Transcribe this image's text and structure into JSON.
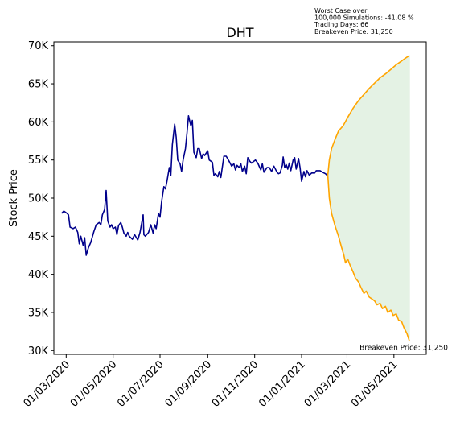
{
  "chart_data": {
    "type": "line",
    "title": "DHT",
    "ylabel": "Stock Price",
    "xlabel": "",
    "ylim": [
      29500,
      70500
    ],
    "xlim": [
      "2020-02-14",
      "2021-06-12"
    ],
    "y_ticks": [
      30000,
      35000,
      40000,
      45000,
      50000,
      55000,
      60000,
      65000,
      70000
    ],
    "y_tick_labels": [
      "30K",
      "35K",
      "40K",
      "45K",
      "50K",
      "55K",
      "60K",
      "65K",
      "70K"
    ],
    "x_ticks": [
      "2020-03-01",
      "2020-05-01",
      "2020-07-01",
      "2020-09-01",
      "2020-11-01",
      "2021-01-01",
      "2021-03-01",
      "2021-05-01"
    ],
    "x_tick_labels": [
      "01/03/2020",
      "01/05/2020",
      "01/07/2020",
      "01/09/2020",
      "01/11/2020",
      "01/01/2021",
      "01/03/2021",
      "01/05/2021"
    ],
    "annotation_lines": [
      "Worst Case over",
      "100,000 Simulations: -41.08 %",
      "Trading Days: 66",
      "Breakeven Price: 31,250"
    ],
    "breakeven": {
      "value": 31250,
      "label": "Breakeven Price: 31,250"
    },
    "colors": {
      "history": "#00008b",
      "bounds": "#ffa500",
      "fill": "#e4f2e4",
      "breakeven": "#d62728"
    },
    "series": [
      {
        "role": "history",
        "points": [
          [
            "2020-02-24",
            48000
          ],
          [
            "2020-02-27",
            48300
          ],
          [
            "2020-03-02",
            48000
          ],
          [
            "2020-03-04",
            47800
          ],
          [
            "2020-03-06",
            46200
          ],
          [
            "2020-03-10",
            46000
          ],
          [
            "2020-03-13",
            46200
          ],
          [
            "2020-03-16",
            45500
          ],
          [
            "2020-03-18",
            44000
          ],
          [
            "2020-03-20",
            45000
          ],
          [
            "2020-03-23",
            43800
          ],
          [
            "2020-03-25",
            44800
          ],
          [
            "2020-03-27",
            42500
          ],
          [
            "2020-03-30",
            43500
          ],
          [
            "2020-04-02",
            44200
          ],
          [
            "2020-04-06",
            45600
          ],
          [
            "2020-04-09",
            46500
          ],
          [
            "2020-04-13",
            46800
          ],
          [
            "2020-04-15",
            46500
          ],
          [
            "2020-04-17",
            47800
          ],
          [
            "2020-04-20",
            48500
          ],
          [
            "2020-04-22",
            51000
          ],
          [
            "2020-04-24",
            47000
          ],
          [
            "2020-04-27",
            46200
          ],
          [
            "2020-04-29",
            46500
          ],
          [
            "2020-05-01",
            46000
          ],
          [
            "2020-05-04",
            46200
          ],
          [
            "2020-05-06",
            45200
          ],
          [
            "2020-05-08",
            46400
          ],
          [
            "2020-05-11",
            46800
          ],
          [
            "2020-05-13",
            46200
          ],
          [
            "2020-05-15",
            45400
          ],
          [
            "2020-05-18",
            45000
          ],
          [
            "2020-05-20",
            45500
          ],
          [
            "2020-05-22",
            45000
          ],
          [
            "2020-05-26",
            44600
          ],
          [
            "2020-05-29",
            45200
          ],
          [
            "2020-06-02",
            44500
          ],
          [
            "2020-06-05",
            45500
          ],
          [
            "2020-06-09",
            47800
          ],
          [
            "2020-06-10",
            45200
          ],
          [
            "2020-06-12",
            45000
          ],
          [
            "2020-06-16",
            45500
          ],
          [
            "2020-06-19",
            46500
          ],
          [
            "2020-06-22",
            45400
          ],
          [
            "2020-06-24",
            46500
          ],
          [
            "2020-06-26",
            46000
          ],
          [
            "2020-06-29",
            48000
          ],
          [
            "2020-07-01",
            47500
          ],
          [
            "2020-07-03",
            49500
          ],
          [
            "2020-07-06",
            51500
          ],
          [
            "2020-07-08",
            51200
          ],
          [
            "2020-07-10",
            52200
          ],
          [
            "2020-07-13",
            54000
          ],
          [
            "2020-07-15",
            53000
          ],
          [
            "2020-07-17",
            57000
          ],
          [
            "2020-07-20",
            59700
          ],
          [
            "2020-07-22",
            58000
          ],
          [
            "2020-07-24",
            55000
          ],
          [
            "2020-07-27",
            54500
          ],
          [
            "2020-07-29",
            53500
          ],
          [
            "2020-07-31",
            55000
          ],
          [
            "2020-08-03",
            56500
          ],
          [
            "2020-08-05",
            58500
          ],
          [
            "2020-08-07",
            60800
          ],
          [
            "2020-08-10",
            59500
          ],
          [
            "2020-08-12",
            60200
          ],
          [
            "2020-08-14",
            56000
          ],
          [
            "2020-08-17",
            55300
          ],
          [
            "2020-08-19",
            56500
          ],
          [
            "2020-08-21",
            56500
          ],
          [
            "2020-08-24",
            55200
          ],
          [
            "2020-08-26",
            55800
          ],
          [
            "2020-08-28",
            55600
          ],
          [
            "2020-09-01",
            56200
          ],
          [
            "2020-09-03",
            55000
          ],
          [
            "2020-09-07",
            54700
          ],
          [
            "2020-09-09",
            53000
          ],
          [
            "2020-09-11",
            53200
          ],
          [
            "2020-09-14",
            52800
          ],
          [
            "2020-09-16",
            53500
          ],
          [
            "2020-09-18",
            52700
          ],
          [
            "2020-09-22",
            55500
          ],
          [
            "2020-09-25",
            55500
          ],
          [
            "2020-09-29",
            54800
          ],
          [
            "2020-10-02",
            54200
          ],
          [
            "2020-10-05",
            54500
          ],
          [
            "2020-10-07",
            53700
          ],
          [
            "2020-10-09",
            54300
          ],
          [
            "2020-10-12",
            54000
          ],
          [
            "2020-10-14",
            54500
          ],
          [
            "2020-10-16",
            53500
          ],
          [
            "2020-10-19",
            54200
          ],
          [
            "2020-10-21",
            53200
          ],
          [
            "2020-10-23",
            55300
          ],
          [
            "2020-10-26",
            54800
          ],
          [
            "2020-10-28",
            54600
          ],
          [
            "2020-11-02",
            55000
          ],
          [
            "2020-11-05",
            54600
          ],
          [
            "2020-11-09",
            53700
          ],
          [
            "2020-11-11",
            54500
          ],
          [
            "2020-11-13",
            53400
          ],
          [
            "2020-11-17",
            54000
          ],
          [
            "2020-11-20",
            54000
          ],
          [
            "2020-11-23",
            53500
          ],
          [
            "2020-11-26",
            54200
          ],
          [
            "2020-11-30",
            53400
          ],
          [
            "2020-12-02",
            53200
          ],
          [
            "2020-12-04",
            53300
          ],
          [
            "2020-12-07",
            54300
          ],
          [
            "2020-12-08",
            55400
          ],
          [
            "2020-12-10",
            54000
          ],
          [
            "2020-12-12",
            54400
          ],
          [
            "2020-12-14",
            53800
          ],
          [
            "2020-12-16",
            54600
          ],
          [
            "2020-12-18",
            53600
          ],
          [
            "2020-12-21",
            55000
          ],
          [
            "2020-12-23",
            55300
          ],
          [
            "2020-12-25",
            53800
          ],
          [
            "2020-12-28",
            55200
          ],
          [
            "2020-12-30",
            54000
          ],
          [
            "2021-01-01",
            52200
          ],
          [
            "2021-01-04",
            53500
          ],
          [
            "2021-01-06",
            52800
          ],
          [
            "2021-01-08",
            53600
          ],
          [
            "2021-01-11",
            53000
          ],
          [
            "2021-01-14",
            53300
          ],
          [
            "2021-01-18",
            53300
          ],
          [
            "2021-01-20",
            53600
          ],
          [
            "2021-01-25",
            53600
          ],
          [
            "2021-01-28",
            53400
          ],
          [
            "2021-02-01",
            53200
          ],
          [
            "2021-02-03",
            53000
          ],
          [
            "2021-02-04",
            53000
          ]
        ]
      },
      {
        "role": "upper-bound",
        "points": [
          [
            "2021-02-04",
            53000
          ],
          [
            "2021-02-06",
            55000
          ],
          [
            "2021-02-09",
            56500
          ],
          [
            "2021-02-13",
            57600
          ],
          [
            "2021-02-18",
            58800
          ],
          [
            "2021-02-24",
            59500
          ],
          [
            "2021-03-02",
            60600
          ],
          [
            "2021-03-09",
            61800
          ],
          [
            "2021-03-16",
            62800
          ],
          [
            "2021-03-23",
            63600
          ],
          [
            "2021-03-30",
            64400
          ],
          [
            "2021-04-06",
            65100
          ],
          [
            "2021-04-13",
            65800
          ],
          [
            "2021-04-20",
            66300
          ],
          [
            "2021-04-27",
            66900
          ],
          [
            "2021-05-04",
            67500
          ],
          [
            "2021-05-11",
            68000
          ],
          [
            "2021-05-18",
            68500
          ],
          [
            "2021-05-21",
            68700
          ]
        ]
      },
      {
        "role": "lower-bound",
        "points": [
          [
            "2021-02-04",
            53000
          ],
          [
            "2021-02-06",
            50000
          ],
          [
            "2021-02-09",
            48000
          ],
          [
            "2021-02-13",
            46500
          ],
          [
            "2021-02-18",
            45000
          ],
          [
            "2021-02-22",
            43500
          ],
          [
            "2021-02-25",
            42500
          ],
          [
            "2021-02-27",
            41500
          ],
          [
            "2021-03-02",
            42000
          ],
          [
            "2021-03-05",
            41200
          ],
          [
            "2021-03-09",
            40300
          ],
          [
            "2021-03-12",
            39500
          ],
          [
            "2021-03-16",
            39000
          ],
          [
            "2021-03-19",
            38300
          ],
          [
            "2021-03-23",
            37500
          ],
          [
            "2021-03-26",
            37800
          ],
          [
            "2021-03-30",
            37000
          ],
          [
            "2021-04-02",
            36800
          ],
          [
            "2021-04-06",
            36500
          ],
          [
            "2021-04-09",
            36000
          ],
          [
            "2021-04-13",
            36200
          ],
          [
            "2021-04-16",
            35500
          ],
          [
            "2021-04-20",
            35800
          ],
          [
            "2021-04-23",
            35000
          ],
          [
            "2021-04-27",
            35300
          ],
          [
            "2021-04-30",
            34600
          ],
          [
            "2021-05-04",
            34800
          ],
          [
            "2021-05-07",
            34000
          ],
          [
            "2021-05-11",
            33800
          ],
          [
            "2021-05-14",
            33000
          ],
          [
            "2021-05-18",
            32200
          ],
          [
            "2021-05-21",
            31250
          ]
        ]
      }
    ]
  }
}
